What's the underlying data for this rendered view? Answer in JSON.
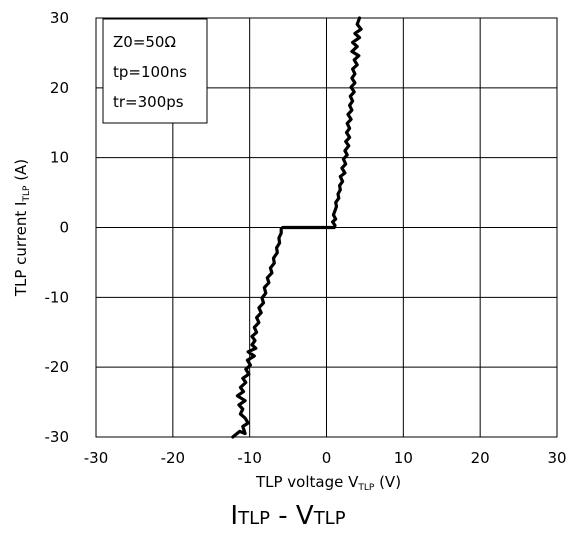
{
  "chart_data": {
    "type": "line",
    "xlabel": {
      "main": "TLP voltage V",
      "sub": "TLP",
      "unit": " (V)"
    },
    "ylabel": {
      "main": "TLP current I",
      "sub": "TLP",
      "unit": " (A)"
    },
    "xlim": [
      -30,
      30
    ],
    "ylim": [
      -30,
      30
    ],
    "xticks": [
      -30,
      -20,
      -10,
      0,
      10,
      20,
      30
    ],
    "yticks": [
      -30,
      -20,
      -10,
      0,
      10,
      20,
      30
    ],
    "grid": true,
    "legend_box": [
      "Z0=50Ω",
      "tp=100ns",
      "tr=300ps"
    ],
    "series": [
      {
        "color": "#000000",
        "points": [
          [
            -12.2,
            -30.0
          ],
          [
            -11.3,
            -29.2
          ],
          [
            -10.6,
            -29.5
          ],
          [
            -10.9,
            -28.5
          ],
          [
            -10.2,
            -28.0
          ],
          [
            -10.6,
            -27.3
          ],
          [
            -11.2,
            -26.7
          ],
          [
            -10.9,
            -26.0
          ],
          [
            -11.4,
            -25.4
          ],
          [
            -10.6,
            -24.8
          ],
          [
            -11.6,
            -24.1
          ],
          [
            -10.8,
            -23.5
          ],
          [
            -11.2,
            -22.9
          ],
          [
            -10.5,
            -22.2
          ],
          [
            -10.9,
            -21.6
          ],
          [
            -10.1,
            -21.0
          ],
          [
            -10.5,
            -20.3
          ],
          [
            -9.9,
            -19.7
          ],
          [
            -10.3,
            -19.0
          ],
          [
            -9.4,
            -18.4
          ],
          [
            -10.2,
            -17.8
          ],
          [
            -9.2,
            -17.3
          ],
          [
            -9.7,
            -16.8
          ],
          [
            -9.3,
            -16.2
          ],
          [
            -9.7,
            -15.6
          ],
          [
            -9.1,
            -15.0
          ],
          [
            -9.4,
            -14.3
          ],
          [
            -8.8,
            -13.6
          ],
          [
            -9.1,
            -12.9
          ],
          [
            -8.5,
            -12.2
          ],
          [
            -8.8,
            -11.5
          ],
          [
            -8.2,
            -10.8
          ],
          [
            -8.4,
            -10.1
          ],
          [
            -7.9,
            -9.4
          ],
          [
            -8.1,
            -8.6
          ],
          [
            -7.5,
            -7.9
          ],
          [
            -7.7,
            -7.2
          ],
          [
            -7.1,
            -6.5
          ],
          [
            -7.3,
            -5.8
          ],
          [
            -6.8,
            -5.1
          ],
          [
            -6.9,
            -4.4
          ],
          [
            -6.4,
            -3.6
          ],
          [
            -6.5,
            -2.9
          ],
          [
            -6.1,
            -2.2
          ],
          [
            -6.2,
            -1.5
          ],
          [
            -5.9,
            -0.8
          ],
          [
            -5.9,
            -0.2
          ],
          [
            -5.7,
            0.0
          ],
          [
            -2.0,
            0.0
          ],
          [
            0.0,
            0.0
          ],
          [
            0.5,
            0.0
          ],
          [
            1.0,
            0.0
          ],
          [
            1.1,
            0.3
          ],
          [
            0.8,
            0.8
          ],
          [
            1.2,
            1.2
          ],
          [
            0.9,
            1.8
          ],
          [
            1.1,
            2.4
          ],
          [
            1.3,
            3.0
          ],
          [
            1.2,
            3.6
          ],
          [
            1.6,
            4.2
          ],
          [
            1.5,
            4.8
          ],
          [
            1.8,
            5.4
          ],
          [
            1.7,
            6.0
          ],
          [
            2.1,
            6.6
          ],
          [
            1.8,
            7.3
          ],
          [
            2.4,
            7.8
          ],
          [
            2.0,
            8.5
          ],
          [
            2.5,
            9.1
          ],
          [
            2.2,
            9.8
          ],
          [
            2.7,
            10.4
          ],
          [
            2.4,
            11.0
          ],
          [
            2.9,
            11.7
          ],
          [
            2.5,
            12.3
          ],
          [
            3.0,
            12.9
          ],
          [
            2.6,
            13.6
          ],
          [
            3.0,
            14.2
          ],
          [
            2.7,
            14.9
          ],
          [
            3.2,
            15.5
          ],
          [
            2.8,
            16.2
          ],
          [
            3.3,
            16.8
          ],
          [
            3.0,
            17.5
          ],
          [
            3.4,
            18.1
          ],
          [
            3.1,
            18.8
          ],
          [
            3.6,
            19.4
          ],
          [
            3.2,
            20.1
          ],
          [
            3.7,
            20.7
          ],
          [
            3.3,
            21.4
          ],
          [
            3.7,
            22.0
          ],
          [
            3.4,
            22.7
          ],
          [
            4.0,
            23.3
          ],
          [
            3.6,
            24.0
          ],
          [
            4.2,
            24.6
          ],
          [
            3.3,
            25.2
          ],
          [
            4.0,
            25.9
          ],
          [
            3.4,
            26.5
          ],
          [
            4.3,
            27.2
          ],
          [
            3.7,
            27.8
          ],
          [
            4.5,
            28.4
          ],
          [
            4.0,
            29.1
          ],
          [
            4.3,
            30.0
          ]
        ]
      }
    ]
  },
  "caption": {
    "main1": "I",
    "sub1": "TLP",
    "sep": " - ",
    "main2": "V",
    "sub2": "TLP"
  }
}
